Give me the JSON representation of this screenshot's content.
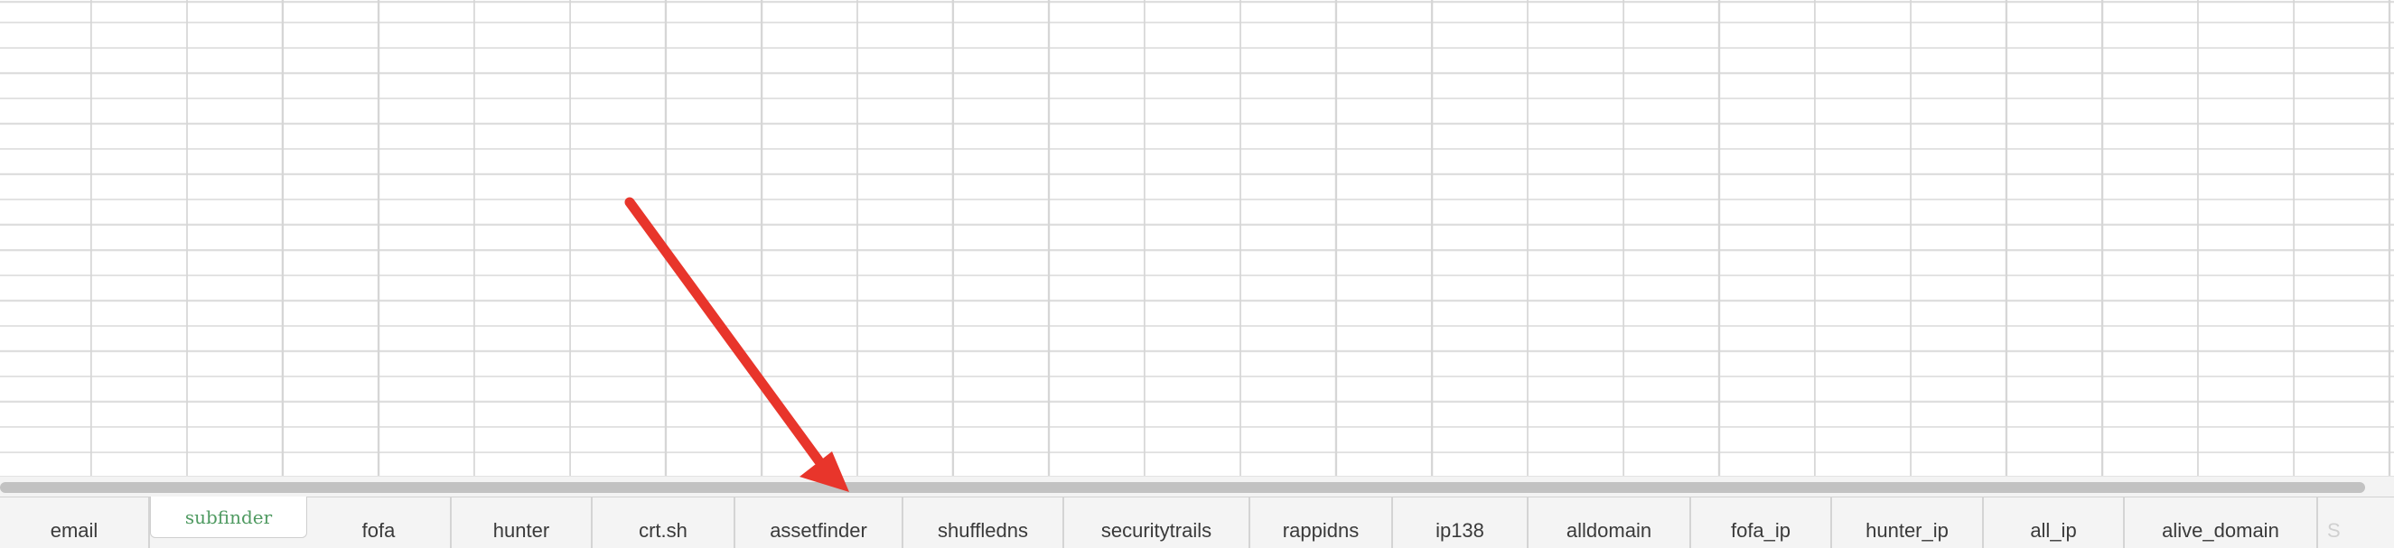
{
  "sheet_tabs": [
    "email",
    "subfinder",
    "fofa",
    "hunter",
    "crt.sh",
    "assetfinder",
    "shuffledns",
    "securitytrails",
    "rappidns",
    "ip138",
    "alldomain",
    "fofa_ip",
    "hunter_ip",
    "all_ip",
    "alive_domain",
    "S"
  ],
  "active_tab": "subfinder",
  "colors": {
    "active_tab_text": "#4f9a61",
    "annotation_arrow": "#e8352b"
  }
}
